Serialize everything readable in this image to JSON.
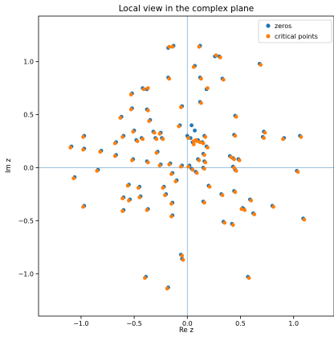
{
  "chart_data": {
    "type": "scatter",
    "title": "Local view in the complex plane",
    "xlabel": "Re z",
    "ylabel": "Im z",
    "xlim": [
      -1.4,
      1.38
    ],
    "ylim": [
      -1.4,
      1.43
    ],
    "xticks": [
      -1.0,
      -0.5,
      0.0,
      0.5,
      1.0
    ],
    "xtick_labels": [
      "−1.0",
      "−0.5",
      "0.0",
      "0.5",
      "1.0"
    ],
    "yticks": [
      -1.0,
      -0.5,
      0.0,
      0.5,
      1.0
    ],
    "ytick_labels": [
      "−1.0",
      "−0.5",
      "0.0",
      "0.5",
      "1.0"
    ],
    "reference_lines": {
      "x": 0,
      "y": 0,
      "color": "#8fb8d9"
    },
    "legend": {
      "position": "top-right"
    },
    "series": [
      {
        "name": "zeros",
        "color": "#1f77b4",
        "points": [
          [
            -0.18,
            1.13
          ],
          [
            -0.13,
            1.15
          ],
          [
            -0.18,
            0.85
          ],
          [
            0.07,
            0.96
          ],
          [
            0.12,
            1.15
          ],
          [
            0.26,
            1.05
          ],
          [
            0.3,
            1.05
          ],
          [
            0.68,
            0.98
          ],
          [
            0.12,
            0.85
          ],
          [
            0.18,
            0.74
          ],
          [
            0.33,
            0.84
          ],
          [
            -0.52,
            0.7
          ],
          [
            -0.42,
            0.75
          ],
          [
            -0.38,
            0.74
          ],
          [
            -0.52,
            0.56
          ],
          [
            -0.38,
            0.55
          ],
          [
            -0.5,
            0.35
          ],
          [
            -0.32,
            0.34
          ],
          [
            -0.62,
            0.48
          ],
          [
            -0.35,
            0.45
          ],
          [
            -0.6,
            0.3
          ],
          [
            -0.48,
            0.26
          ],
          [
            -0.43,
            0.28
          ],
          [
            -0.3,
            0.28
          ],
          [
            -0.25,
            0.33
          ],
          [
            -0.24,
            0.28
          ],
          [
            -0.07,
            0.4
          ],
          [
            -0.05,
            0.58
          ],
          [
            0.12,
            0.62
          ],
          [
            0.04,
            0.4
          ],
          [
            0.07,
            0.35
          ],
          [
            0.0,
            0.3
          ],
          [
            0.03,
            0.28
          ],
          [
            0.05,
            0.24
          ],
          [
            0.16,
            0.3
          ],
          [
            0.18,
            0.2
          ],
          [
            0.14,
            0.24
          ],
          [
            0.1,
            0.26
          ],
          [
            0.45,
            0.49
          ],
          [
            0.44,
            0.31
          ],
          [
            0.72,
            0.34
          ],
          [
            0.71,
            0.29
          ],
          [
            0.91,
            0.28
          ],
          [
            1.06,
            0.3
          ],
          [
            -0.97,
            0.3
          ],
          [
            -1.09,
            0.2
          ],
          [
            -0.97,
            0.18
          ],
          [
            -0.81,
            0.16
          ],
          [
            -0.67,
            0.24
          ],
          [
            -0.67,
            0.12
          ],
          [
            -0.51,
            0.08
          ],
          [
            -0.38,
            0.06
          ],
          [
            -0.28,
            0.15
          ],
          [
            -0.25,
            0.03
          ],
          [
            -0.16,
            0.04
          ],
          [
            -0.14,
            -0.05
          ],
          [
            -0.05,
            0.02
          ],
          [
            0.02,
            0.02
          ],
          [
            0.04,
            -0.01
          ],
          [
            0.08,
            -0.04
          ],
          [
            0.1,
            0.08
          ],
          [
            0.15,
            0.13
          ],
          [
            0.16,
            0.06
          ],
          [
            0.15,
            0.0
          ],
          [
            0.4,
            0.11
          ],
          [
            0.43,
            0.09
          ],
          [
            0.43,
            0.01
          ],
          [
            0.48,
            0.08
          ],
          [
            0.45,
            -0.02
          ],
          [
            0.2,
            -0.17
          ],
          [
            -0.1,
            -0.12
          ],
          [
            -0.22,
            -0.18
          ],
          [
            -0.45,
            -0.18
          ],
          [
            -0.55,
            -0.16
          ],
          [
            -0.84,
            -0.02
          ],
          [
            -1.06,
            -0.09
          ],
          [
            -0.97,
            -0.36
          ],
          [
            -0.6,
            -0.28
          ],
          [
            -0.54,
            -0.3
          ],
          [
            -0.44,
            -0.27
          ],
          [
            -0.6,
            -0.4
          ],
          [
            -0.37,
            -0.39
          ],
          [
            -0.2,
            -0.25
          ],
          [
            -0.14,
            -0.33
          ],
          [
            -0.14,
            -0.45
          ],
          [
            0.15,
            -0.32
          ],
          [
            0.32,
            -0.25
          ],
          [
            0.44,
            -0.22
          ],
          [
            0.59,
            -0.3
          ],
          [
            0.52,
            -0.38
          ],
          [
            0.53,
            -0.39
          ],
          [
            0.62,
            -0.43
          ],
          [
            0.8,
            -0.36
          ],
          [
            1.03,
            -0.03
          ],
          [
            1.09,
            -0.48
          ],
          [
            0.34,
            -0.51
          ],
          [
            0.42,
            -0.53
          ],
          [
            -0.06,
            -0.82
          ],
          [
            -0.05,
            -0.86
          ],
          [
            -0.39,
            -1.03
          ],
          [
            -0.18,
            -1.13
          ],
          [
            0.57,
            -1.03
          ]
        ]
      },
      {
        "name": "critical points",
        "color": "#ff7f0e",
        "points": [
          [
            -0.17,
            1.14
          ],
          [
            -0.14,
            1.14
          ],
          [
            -0.17,
            0.84
          ],
          [
            0.06,
            0.95
          ],
          [
            0.11,
            1.14
          ],
          [
            0.27,
            1.06
          ],
          [
            0.31,
            1.04
          ],
          [
            0.69,
            0.97
          ],
          [
            0.13,
            0.84
          ],
          [
            0.19,
            0.75
          ],
          [
            0.34,
            0.83
          ],
          [
            -0.53,
            0.69
          ],
          [
            -0.41,
            0.74
          ],
          [
            -0.37,
            0.75
          ],
          [
            -0.53,
            0.55
          ],
          [
            -0.37,
            0.54
          ],
          [
            -0.51,
            0.34
          ],
          [
            -0.31,
            0.33
          ],
          [
            -0.63,
            0.47
          ],
          [
            -0.36,
            0.44
          ],
          [
            -0.61,
            0.29
          ],
          [
            -0.47,
            0.25
          ],
          [
            -0.42,
            0.27
          ],
          [
            -0.29,
            0.27
          ],
          [
            -0.26,
            0.32
          ],
          [
            -0.23,
            0.27
          ],
          [
            -0.08,
            0.39
          ],
          [
            -0.06,
            0.57
          ],
          [
            0.13,
            0.61
          ],
          [
            0.06,
            0.25
          ],
          [
            0.08,
            0.26
          ],
          [
            0.01,
            0.28
          ],
          [
            0.06,
            0.22
          ],
          [
            0.12,
            0.24
          ],
          [
            0.17,
            0.29
          ],
          [
            0.19,
            0.19
          ],
          [
            0.15,
            0.23
          ],
          [
            0.09,
            0.25
          ],
          [
            0.46,
            0.48
          ],
          [
            0.45,
            0.3
          ],
          [
            0.73,
            0.33
          ],
          [
            0.72,
            0.28
          ],
          [
            0.9,
            0.27
          ],
          [
            1.07,
            0.29
          ],
          [
            -0.98,
            0.29
          ],
          [
            -1.1,
            0.19
          ],
          [
            -0.98,
            0.17
          ],
          [
            -0.82,
            0.15
          ],
          [
            -0.68,
            0.23
          ],
          [
            -0.68,
            0.11
          ],
          [
            -0.52,
            0.07
          ],
          [
            -0.37,
            0.05
          ],
          [
            -0.29,
            0.14
          ],
          [
            -0.26,
            0.02
          ],
          [
            -0.17,
            0.03
          ],
          [
            -0.15,
            -0.06
          ],
          [
            -0.06,
            0.01
          ],
          [
            0.01,
            0.01
          ],
          [
            0.05,
            -0.02
          ],
          [
            0.09,
            -0.05
          ],
          [
            0.11,
            0.07
          ],
          [
            0.16,
            0.12
          ],
          [
            0.17,
            0.05
          ],
          [
            0.16,
            -0.01
          ],
          [
            0.41,
            0.1
          ],
          [
            0.44,
            0.08
          ],
          [
            0.44,
            0.0
          ],
          [
            0.49,
            0.07
          ],
          [
            0.46,
            -0.03
          ],
          [
            0.21,
            -0.18
          ],
          [
            -0.11,
            -0.13
          ],
          [
            -0.23,
            -0.19
          ],
          [
            -0.46,
            -0.19
          ],
          [
            -0.56,
            -0.17
          ],
          [
            -0.85,
            -0.03
          ],
          [
            -1.07,
            -0.1
          ],
          [
            -0.98,
            -0.37
          ],
          [
            -0.61,
            -0.29
          ],
          [
            -0.55,
            -0.31
          ],
          [
            -0.45,
            -0.28
          ],
          [
            -0.61,
            -0.41
          ],
          [
            -0.38,
            -0.4
          ],
          [
            -0.21,
            -0.26
          ],
          [
            -0.15,
            -0.34
          ],
          [
            -0.15,
            -0.46
          ],
          [
            0.16,
            -0.33
          ],
          [
            0.33,
            -0.26
          ],
          [
            0.45,
            -0.23
          ],
          [
            0.6,
            -0.31
          ],
          [
            0.51,
            -0.39
          ],
          [
            0.54,
            -0.4
          ],
          [
            0.63,
            -0.44
          ],
          [
            0.81,
            -0.37
          ],
          [
            1.04,
            -0.04
          ],
          [
            1.1,
            -0.49
          ],
          [
            0.35,
            -0.52
          ],
          [
            0.43,
            -0.54
          ],
          [
            -0.05,
            -0.83
          ],
          [
            -0.04,
            -0.87
          ],
          [
            -0.4,
            -1.04
          ],
          [
            -0.19,
            -1.14
          ],
          [
            0.58,
            -1.04
          ]
        ]
      }
    ]
  }
}
